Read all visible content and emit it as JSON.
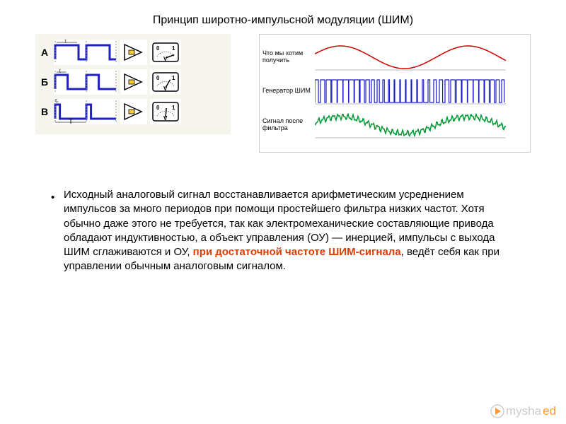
{
  "title": "Принцип широтно-импульсной модуляции (ШИМ)",
  "left_diagram": {
    "background": "#f5f5ed",
    "rows": [
      {
        "label": "А",
        "duty": 0.75,
        "meter_angle": -20
      },
      {
        "label": "Б",
        "duty": 0.4,
        "meter_angle": -60
      },
      {
        "label": "В",
        "duty": 0.15,
        "meter_angle": -85
      }
    ],
    "t_label": "t",
    "T_label": "T",
    "wave_color": "#2020c0",
    "wave_stroke": 3,
    "meter_text": {
      "zero": "0",
      "one": "1",
      "v": "V"
    }
  },
  "right_diagram": {
    "rows": [
      {
        "label": "Что мы хотим получить",
        "type": "sine",
        "color": "#cc0000"
      },
      {
        "label": "Генератор ШИМ",
        "type": "pwm",
        "color": "#2020c0"
      },
      {
        "label": "Сигнал после фильтра",
        "type": "noisy_sine",
        "color": "#009933"
      }
    ]
  },
  "paragraph": {
    "pre": "Исходный аналоговый сигнал восстанавливается арифметическим усреднением импульсов за много периодов при помощи простейшего фильтра низких частот. Хотя обычно даже этого не требуется, так как электромеханические составляющие привода обладают индуктивностью, а объект управления (ОУ) — инерцией, импульсы с выхода ШИМ сглаживаются и ОУ, ",
    "highlight": "при достаточной частоте ШИМ-сигнала",
    "post": ", ведёт себя как при управлении обычным аналоговым сигналом."
  },
  "footer": {
    "text_plain": "mysha",
    "text_orange": "ed"
  }
}
